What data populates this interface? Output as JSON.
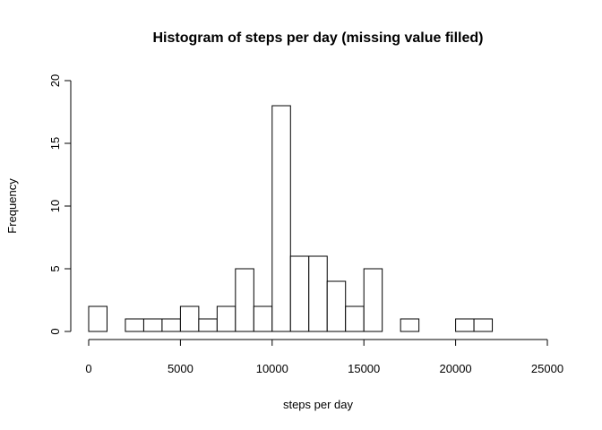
{
  "chart_data": {
    "type": "bar",
    "title": "Histogram of steps per day (missing value filled)",
    "xlabel": "steps per day",
    "ylabel": "Frequency",
    "xlim": [
      0,
      25000
    ],
    "ylim": [
      0,
      20
    ],
    "xticks": [
      0,
      5000,
      10000,
      15000,
      20000,
      25000
    ],
    "yticks": [
      0,
      5,
      10,
      15,
      20
    ],
    "bin_width": 1000,
    "bins": [
      {
        "start": 0,
        "end": 1000,
        "count": 2
      },
      {
        "start": 1000,
        "end": 2000,
        "count": 0
      },
      {
        "start": 2000,
        "end": 3000,
        "count": 1
      },
      {
        "start": 3000,
        "end": 4000,
        "count": 1
      },
      {
        "start": 4000,
        "end": 5000,
        "count": 1
      },
      {
        "start": 5000,
        "end": 6000,
        "count": 2
      },
      {
        "start": 6000,
        "end": 7000,
        "count": 1
      },
      {
        "start": 7000,
        "end": 8000,
        "count": 2
      },
      {
        "start": 8000,
        "end": 9000,
        "count": 5
      },
      {
        "start": 9000,
        "end": 10000,
        "count": 2
      },
      {
        "start": 10000,
        "end": 11000,
        "count": 18
      },
      {
        "start": 11000,
        "end": 12000,
        "count": 6
      },
      {
        "start": 12000,
        "end": 13000,
        "count": 6
      },
      {
        "start": 13000,
        "end": 14000,
        "count": 4
      },
      {
        "start": 14000,
        "end": 15000,
        "count": 2
      },
      {
        "start": 15000,
        "end": 16000,
        "count": 5
      },
      {
        "start": 16000,
        "end": 17000,
        "count": 0
      },
      {
        "start": 17000,
        "end": 18000,
        "count": 1
      },
      {
        "start": 18000,
        "end": 19000,
        "count": 0
      },
      {
        "start": 19000,
        "end": 20000,
        "count": 0
      },
      {
        "start": 20000,
        "end": 21000,
        "count": 1
      },
      {
        "start": 21000,
        "end": 22000,
        "count": 1
      },
      {
        "start": 22000,
        "end": 23000,
        "count": 0
      },
      {
        "start": 23000,
        "end": 24000,
        "count": 0
      },
      {
        "start": 24000,
        "end": 25000,
        "count": 0
      }
    ]
  }
}
